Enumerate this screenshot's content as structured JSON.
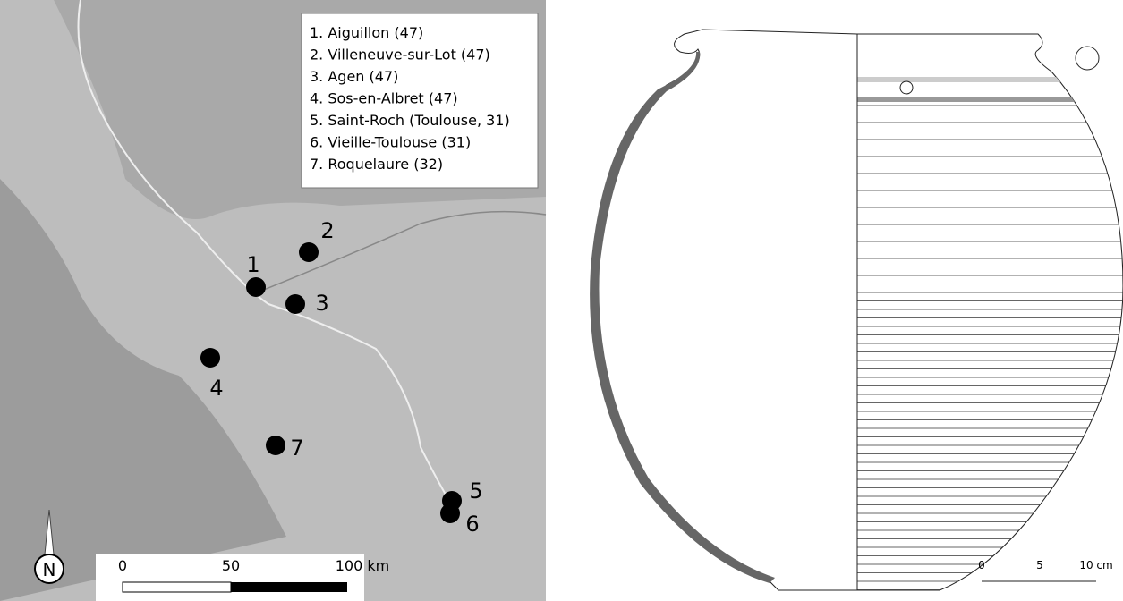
{
  "legend": [
    "1. Aiguillon (47)",
    "2. Villeneuve-sur-Lot (47)",
    "3. Agen (47)",
    "4. Sos-en-Albret (47)",
    "5. Saint-Roch (Toulouse, 31)",
    "6. Vieille-Toulouse (31)",
    "7. Roquelaure (32)"
  ],
  "sites": [
    "1",
    "2",
    "3",
    "4",
    "5",
    "6",
    "7"
  ],
  "map_scale": [
    "0",
    "50",
    "100 km"
  ],
  "north": "N",
  "vessel_scale": [
    "0",
    "5",
    "10 cm"
  ]
}
